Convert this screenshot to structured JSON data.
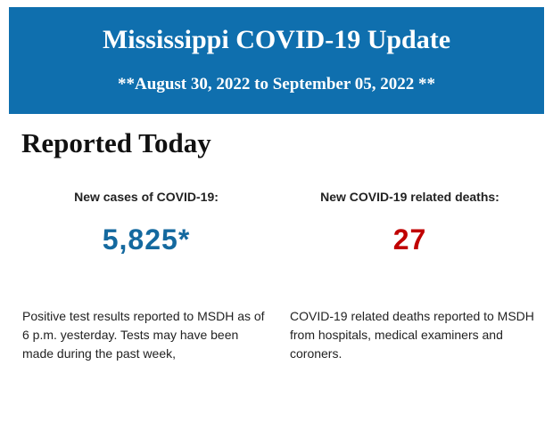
{
  "banner": {
    "title": "Mississippi COVID-19 Update",
    "subtitle": "**August 30, 2022 to September 05, 2022 **",
    "background_color": "#0f6fae"
  },
  "section": {
    "heading": "Reported Today"
  },
  "cases": {
    "label": "New cases of COVID-19:",
    "value": "5,825*",
    "value_color": "#14699f",
    "description": "Positive test results reported to MSDH as of 6 p.m. yesterday. Tests may have been made during the past week,"
  },
  "deaths": {
    "label": "New COVID-19 related deaths:",
    "value": "27",
    "value_color": "#c00000",
    "description": "COVID-19 related deaths reported to MSDH from hospitals, medical examiners and coroners."
  }
}
